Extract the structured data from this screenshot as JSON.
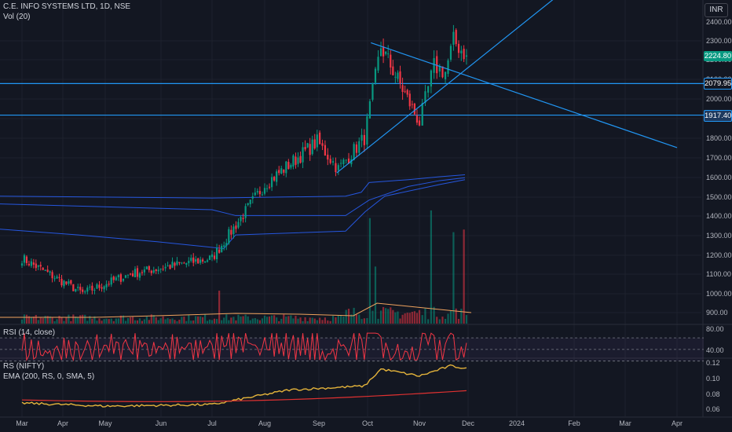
{
  "header": {
    "symbol_line": "C.E. INFO SYSTEMS LTD, 1D, NSE",
    "vol_line": "Vol (20)",
    "currency": "INR"
  },
  "colors": {
    "background": "#131722",
    "up": "#089981",
    "down": "#f23645",
    "trend": "#2196f3",
    "rsi": "#f23645",
    "rs": "#e5b43b",
    "ema": "#e03131",
    "vol_ma": "#f0a35e",
    "last_price_tag": "#089981",
    "level_tag": "#2196f3"
  },
  "price_tags": {
    "last": "2224.80",
    "level_upper": "2079.95",
    "level_lower": "1917.40"
  },
  "rsi_panel": {
    "title": "RSI (14, close)",
    "ticks": [
      "80.00",
      "40.00"
    ]
  },
  "rs_panel": {
    "title": "RS (NIFTY)",
    "ema_title": "EMA (200, RS, 0, SMA, 5)",
    "ticks": [
      "0.12",
      "0.10",
      "0.08",
      "0.06"
    ]
  },
  "chart_data": {
    "type": "candlestick",
    "title": "C.E. INFO SYSTEMS LTD, 1D, NSE",
    "price_axis": {
      "ticks": [
        "2400.00",
        "2300.00",
        "2200.00",
        "2100.00",
        "2000.00",
        "1900.00",
        "1800.00",
        "1700.00",
        "1600.00",
        "1500.00",
        "1400.00",
        "1300.00",
        "1200.00",
        "1100.00",
        "1000.00",
        "900.00"
      ],
      "range": [
        860,
        2440
      ]
    },
    "time_axis": [
      "Mar",
      "Apr",
      "May",
      "Jun",
      "Jul",
      "Aug",
      "Sep",
      "Oct",
      "Nov",
      "Dec",
      "2024",
      "Feb",
      "Mar",
      "Apr"
    ],
    "last_price": 2224.8,
    "horizontal_levels": [
      2079.95,
      1917.4
    ],
    "trendlines": [
      {
        "name": "resistance",
        "from": [
          "Oct 3",
          2290
        ],
        "to": [
          "Apr 2024",
          1750
        ]
      },
      {
        "name": "support",
        "from": [
          "Sep 12",
          1620
        ],
        "to": [
          "Feb 2024",
          2600
        ]
      }
    ],
    "price_segments": [
      {
        "from": "Mar 1",
        "to": "Apr 15",
        "start": 1180,
        "end": 1000
      },
      {
        "from": "Apr 15",
        "to": "May 15",
        "start": 1000,
        "end": 1100
      },
      {
        "from": "May 15",
        "to": "Jul 1",
        "start": 1100,
        "end": 1180
      },
      {
        "from": "Jul 1",
        "to": "Aug 1",
        "start": 1180,
        "end": 1560
      },
      {
        "from": "Aug 1",
        "to": "Aug 31",
        "start": 1560,
        "end": 1780
      },
      {
        "from": "Aug 31",
        "to": "Sep 13",
        "start": 1780,
        "end": 1640
      },
      {
        "from": "Sep 13",
        "to": "Sep 29",
        "start": 1640,
        "end": 1800
      },
      {
        "from": "Sep 29",
        "to": "Oct 9",
        "start": 1800,
        "end": 2270
      },
      {
        "from": "Oct 9",
        "to": "Nov 1",
        "start": 2270,
        "end": 1880
      },
      {
        "from": "Nov 1",
        "to": "Nov 10",
        "start": 1880,
        "end": 2170
      },
      {
        "from": "Nov 10",
        "to": "Nov 17",
        "start": 2170,
        "end": 2140
      },
      {
        "from": "Nov 17",
        "to": "Nov 22",
        "start": 2140,
        "end": 2300
      },
      {
        "from": "Nov 22",
        "to": "Nov 30",
        "start": 2300,
        "end": 2225
      }
    ],
    "volume": {
      "label": "Vol (20)",
      "spikes": [
        "Jul 5",
        "Oct 3",
        "Oct 5",
        "Nov 9",
        "Nov 22",
        "Nov 28"
      ]
    },
    "rsi": {
      "label": "RSI (14, close)",
      "ticks": [
        80,
        40
      ],
      "band": [
        30,
        70
      ]
    },
    "rs_nifty": {
      "label": "RS (NIFTY)",
      "ticks": [
        0.12,
        0.1,
        0.08,
        0.06
      ],
      "segments": [
        {
          "from": "Mar 1",
          "to": "May 1",
          "start": 0.068,
          "end": 0.064
        },
        {
          "from": "May 1",
          "to": "Jul 1",
          "start": 0.064,
          "end": 0.066
        },
        {
          "from": "Jul 1",
          "to": "Aug 15",
          "start": 0.066,
          "end": 0.085
        },
        {
          "from": "Aug 15",
          "to": "Sep 29",
          "start": 0.085,
          "end": 0.09
        },
        {
          "from": "Sep 29",
          "to": "Oct 9",
          "start": 0.09,
          "end": 0.112
        },
        {
          "from": "Oct 9",
          "to": "Nov 1",
          "start": 0.112,
          "end": 0.103
        },
        {
          "from": "Nov 1",
          "to": "Nov 20",
          "start": 0.103,
          "end": 0.116
        },
        {
          "from": "Nov 20",
          "to": "Nov 30",
          "start": 0.116,
          "end": 0.113
        }
      ],
      "ema": {
        "label": "EMA (200, RS, 0, SMA, 5)",
        "start": 0.072,
        "end": 0.084
      }
    }
  }
}
